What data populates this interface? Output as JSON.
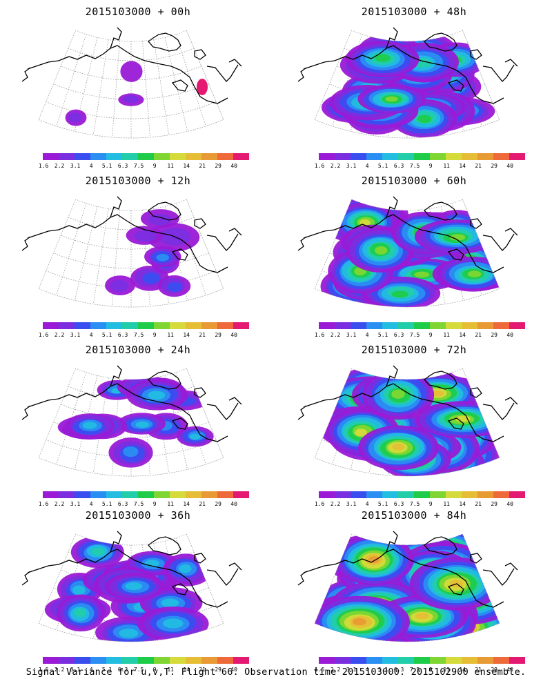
{
  "footer": "Signal Variance for u,v,T. Flight 66. Observation time 2015103000. 2015102900 ensemble.",
  "colorbar": {
    "ticks": [
      "1.6",
      "2.2",
      "3.1",
      "4",
      "5.1",
      "6.3",
      "7.5",
      "9",
      "11",
      "14",
      "21",
      "29",
      "40"
    ],
    "colors": [
      "#9a1ad6",
      "#7a2ee0",
      "#3a4ef0",
      "#2a8ef2",
      "#22bde0",
      "#22cdaa",
      "#1fcc4a",
      "#7fd632",
      "#d5db3a",
      "#e6be36",
      "#e89a34",
      "#ee6a3a",
      "#e41a72"
    ]
  },
  "panels": [
    {
      "title": "2015103000 + 00h",
      "level": 0
    },
    {
      "title": "2015103000 + 48h",
      "level": 4
    },
    {
      "title": "2015103000 + 12h",
      "level": 1
    },
    {
      "title": "2015103000 + 60h",
      "level": 5
    },
    {
      "title": "2015103000 + 24h",
      "level": 2
    },
    {
      "title": "2015103000 + 72h",
      "level": 6
    },
    {
      "title": "2015103000 + 36h",
      "level": 3
    },
    {
      "title": "2015103000 + 84h",
      "level": 7
    }
  ]
}
